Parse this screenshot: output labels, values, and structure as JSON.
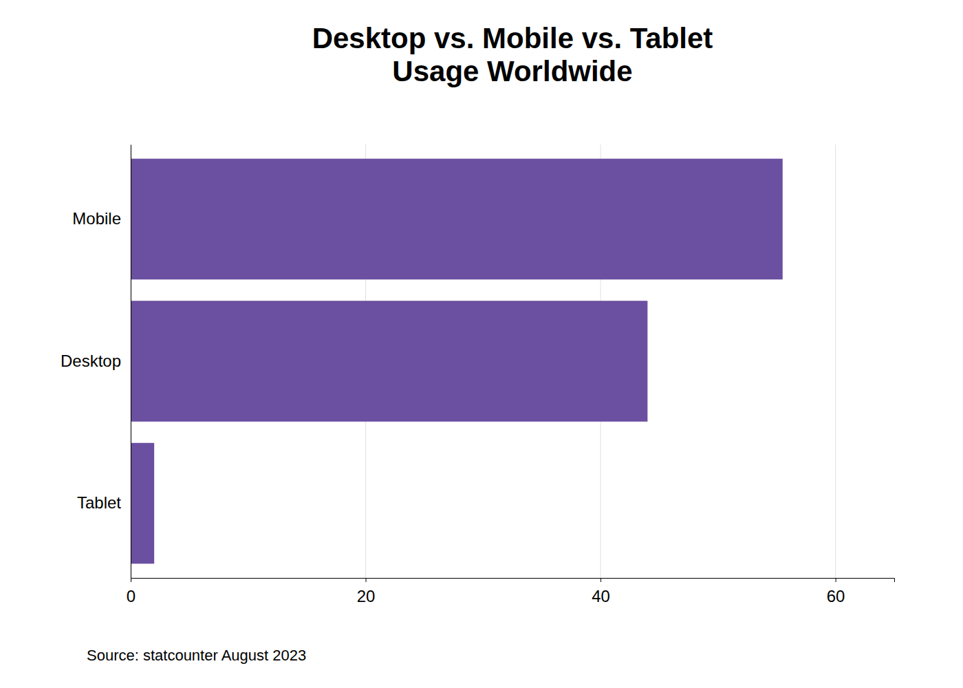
{
  "chart_data": {
    "type": "bar",
    "orientation": "horizontal",
    "title": "Desktop vs. Mobile vs. Tablet\nUsage Worldwide",
    "categories": [
      "Mobile",
      "Desktop",
      "Tablet"
    ],
    "values": [
      55.5,
      44.0,
      2.0
    ],
    "color": "#6B4FA0",
    "xlim": [
      0,
      65
    ],
    "xticks": [
      0,
      20,
      40,
      60
    ],
    "grid": true,
    "source": "Source: statcounter August 2023"
  }
}
